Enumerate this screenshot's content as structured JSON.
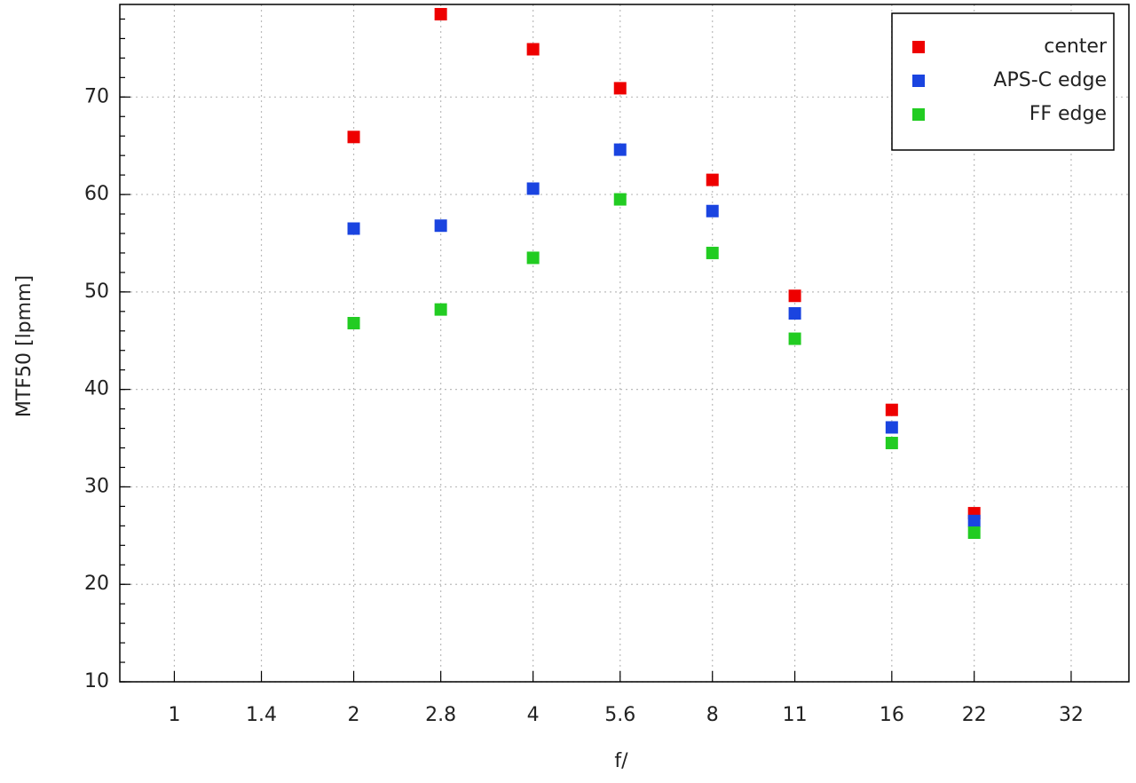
{
  "chart_data": {
    "type": "scatter",
    "x_label": "f/",
    "y_label": "MTF50 [lpmm]",
    "x_scale": "log",
    "xlim": [
      0.81,
      40
    ],
    "xticks": [
      1,
      1.4,
      2,
      2.8,
      4,
      5.6,
      8,
      11,
      16,
      22,
      32
    ],
    "ylim": [
      10,
      79.5
    ],
    "yticks": [
      10,
      20,
      30,
      40,
      50,
      60,
      70
    ],
    "grid": true,
    "legend": "upper right",
    "x": [
      2,
      2.8,
      4,
      5.6,
      8,
      11,
      16,
      22
    ],
    "series": [
      {
        "name": "center",
        "color": "#ee0000",
        "values": [
          65.9,
          78.5,
          74.9,
          70.9,
          61.5,
          49.6,
          37.9,
          27.3
        ]
      },
      {
        "name": "APS-C edge",
        "color": "#1a44e0",
        "values": [
          56.5,
          56.8,
          60.6,
          64.6,
          58.3,
          47.8,
          36.1,
          26.5
        ]
      },
      {
        "name": "FF edge",
        "color": "#22cc22",
        "values": [
          46.8,
          48.2,
          53.5,
          59.5,
          54.0,
          45.2,
          34.5,
          25.3
        ]
      }
    ]
  }
}
